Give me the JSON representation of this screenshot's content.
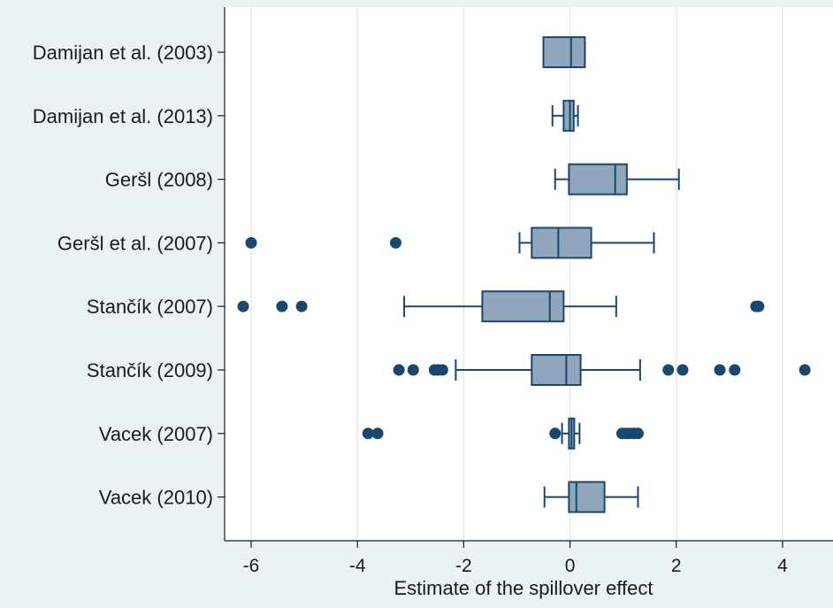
{
  "chart_data": {
    "type": "boxplot",
    "orientation": "horizontal",
    "xlabel": "Estimate of the spillover effect",
    "xlim": [
      -6.5,
      4.95
    ],
    "xticks": [
      -6,
      -4,
      -2,
      0,
      2,
      4
    ],
    "grid": "vertical",
    "colors": {
      "background": "#eaf2f3",
      "plot_bg": "#ffffff",
      "box_fill": "#8fa6bd",
      "stroke": "#1a476f",
      "outlier": "#1a476f",
      "grid": "#e6e9ec"
    },
    "categories": [
      "Damijan et al. (2003)",
      "Damijan et al. (2013)",
      "Geršl (2008)",
      "Geršl et al. (2007)",
      "Stančík (2007)",
      "Stančík (2009)",
      "Vacek (2007)",
      "Vacek (2010)"
    ],
    "boxes": [
      {
        "whisker_low": -0.5,
        "q1": -0.5,
        "median": 0.02,
        "q3": 0.28,
        "whisker_high": 0.28,
        "outliers": []
      },
      {
        "whisker_low": -0.33,
        "q1": -0.12,
        "median": 0.0,
        "q3": 0.07,
        "whisker_high": 0.15,
        "outliers": []
      },
      {
        "whisker_low": -0.28,
        "q1": -0.02,
        "median": 0.85,
        "q3": 1.07,
        "whisker_high": 2.05,
        "outliers": []
      },
      {
        "whisker_low": -0.95,
        "q1": -0.72,
        "median": -0.22,
        "q3": 0.4,
        "whisker_high": 1.58,
        "outliers": [
          -6.0,
          -3.28
        ]
      },
      {
        "whisker_low": -3.12,
        "q1": -1.65,
        "median": -0.38,
        "q3": -0.12,
        "whisker_high": 0.87,
        "outliers": [
          -6.15,
          -5.42,
          -5.05,
          3.5,
          3.55
        ]
      },
      {
        "whisker_low": -2.15,
        "q1": -0.72,
        "median": -0.07,
        "q3": 0.2,
        "whisker_high": 1.32,
        "outliers": [
          -3.22,
          -2.95,
          -2.55,
          -2.48,
          -2.4,
          1.85,
          2.12,
          2.82,
          3.1,
          4.42
        ]
      },
      {
        "whisker_low": -0.15,
        "q1": -0.02,
        "median": 0.03,
        "q3": 0.08,
        "whisker_high": 0.18,
        "outliers": [
          -3.8,
          -3.62,
          -0.28,
          0.98,
          1.05,
          1.12,
          1.2,
          1.28
        ]
      },
      {
        "whisker_low": -0.48,
        "q1": -0.02,
        "median": 0.12,
        "q3": 0.65,
        "whisker_high": 1.28,
        "outliers": []
      }
    ]
  }
}
